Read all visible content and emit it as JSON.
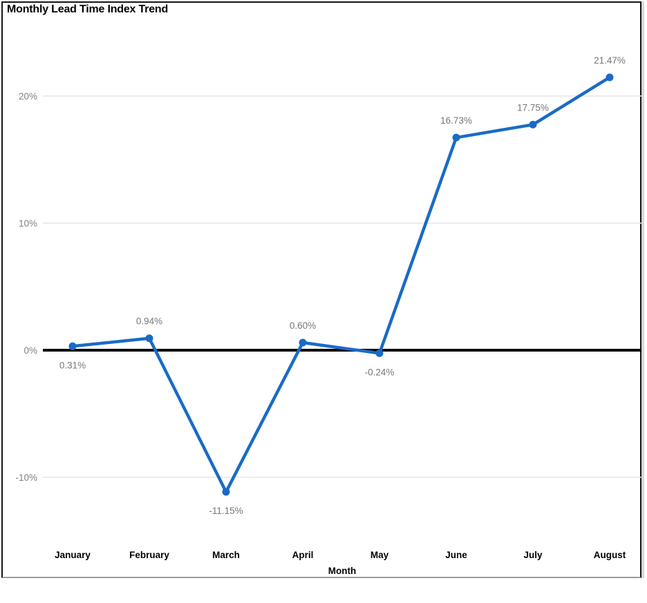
{
  "chart_data": {
    "type": "line",
    "title": "Monthly Lead Time Index Trend",
    "xlabel": "Month",
    "ylabel": "",
    "categories": [
      "January",
      "February",
      "March",
      "April",
      "May",
      "June",
      "July",
      "August"
    ],
    "values": [
      0.31,
      0.94,
      -11.15,
      0.6,
      -0.24,
      16.73,
      17.75,
      21.47
    ],
    "value_labels": [
      "0.31%",
      "0.94%",
      "-11.15%",
      "0.60%",
      "-0.24%",
      "16.73%",
      "17.75%",
      "21.47%"
    ],
    "label_placement": [
      "below",
      "above",
      "below",
      "above",
      "below",
      "above",
      "above",
      "above"
    ],
    "y_ticks": [
      {
        "value": 20,
        "label": "20%"
      },
      {
        "value": 10,
        "label": "10%"
      },
      {
        "value": 0,
        "label": "0%"
      },
      {
        "value": -10,
        "label": "-10%"
      }
    ],
    "ylim": [
      -15,
      25
    ],
    "grid": true,
    "legend": "none",
    "colors": {
      "line": "#1a6bc6",
      "marker": "#1a6bc6",
      "zero_line": "#000000",
      "gridline": "#e6e6e6",
      "y_tick_label": "#808080",
      "data_label": "#777777",
      "axis_label": "#000000",
      "background": "#ffffff",
      "frame_border": "#141414"
    }
  }
}
